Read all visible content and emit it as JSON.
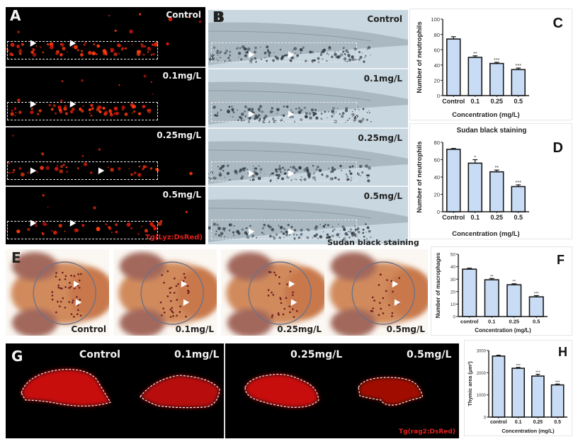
{
  "panels": {
    "A": {
      "label": "A",
      "conditions": [
        "Control",
        "0.1mg/L",
        "0.25mg/L",
        "0.5mg/L"
      ],
      "reporter": "Tg(Lyz:DsRed)"
    },
    "B": {
      "label": "B",
      "conditions": [
        "Control",
        "0.1mg/L",
        "0.25mg/L",
        "0.5mg/L"
      ],
      "footer": "Sudan black staining"
    },
    "E": {
      "label": "E",
      "conditions": [
        "Control",
        "0.1mg/L",
        "0.25mg/L",
        "0.5mg/L"
      ]
    },
    "G": {
      "label": "G",
      "conditions": [
        "Control",
        "0.1mg/L",
        "0.25mg/L",
        "0.5mg/L"
      ],
      "reporter": "Tg(rag2:DsRed)"
    }
  },
  "colors": {
    "bar_fill": "#c9dcf5",
    "bar_stroke": "#1a1a1a",
    "fluor_red": "#ff2a12",
    "reporter_text": "#e0201c"
  },
  "chart_data": [
    {
      "id": "C",
      "panel_label": "C",
      "type": "bar",
      "title": "",
      "categories": [
        "Control",
        "0.1",
        "0.25",
        "0.5"
      ],
      "values": [
        74,
        50,
        42,
        34
      ],
      "errors": [
        3,
        2,
        1.5,
        2
      ],
      "significance": [
        "",
        "**",
        "***",
        "***"
      ],
      "xlabel": "Concentration (mg/L)",
      "ylabel": "Number of neutrophils",
      "ylim": [
        0,
        100
      ],
      "yticks": [
        0,
        20,
        40,
        60,
        80,
        100
      ]
    },
    {
      "id": "D",
      "panel_label": "D",
      "type": "bar",
      "title": "Sudan black staining",
      "categories": [
        "Control",
        "0.1",
        "0.25",
        "0.5"
      ],
      "values": [
        72,
        56,
        46,
        29
      ],
      "errors": [
        1,
        4,
        2,
        2
      ],
      "significance": [
        "",
        "*",
        "**",
        "***"
      ],
      "xlabel": "Concentration (mg/L)",
      "ylabel": "Number of neutrophils",
      "ylim": [
        0,
        80
      ],
      "yticks": [
        0,
        20,
        40,
        60,
        80
      ]
    },
    {
      "id": "F",
      "panel_label": "F",
      "type": "bar",
      "title": "",
      "categories": [
        "control",
        "0.1",
        "0.25",
        "0.5"
      ],
      "values": [
        38,
        29.5,
        25.5,
        15.8
      ],
      "errors": [
        0.8,
        1,
        0.8,
        1
      ],
      "significance": [
        "",
        "**",
        "**",
        "***"
      ],
      "xlabel": "Concentration (mg/L)",
      "ylabel": "Number of macrophages",
      "ylim": [
        0,
        50
      ],
      "yticks": [
        0,
        10,
        20,
        30,
        40,
        50
      ]
    },
    {
      "id": "H",
      "panel_label": "H",
      "type": "bar",
      "title": "",
      "categories": [
        "control",
        "0.1",
        "0.25",
        "0.5"
      ],
      "values": [
        2750,
        2200,
        1850,
        1450
      ],
      "errors": [
        40,
        40,
        80,
        40
      ],
      "significance": [
        "",
        "***",
        "***",
        "***"
      ],
      "xlabel": "Concentration (mg/L)",
      "ylabel": "Thymic area (μm²)",
      "ylim": [
        0,
        3000
      ],
      "yticks": [
        0,
        1000,
        2000,
        3000
      ]
    }
  ]
}
